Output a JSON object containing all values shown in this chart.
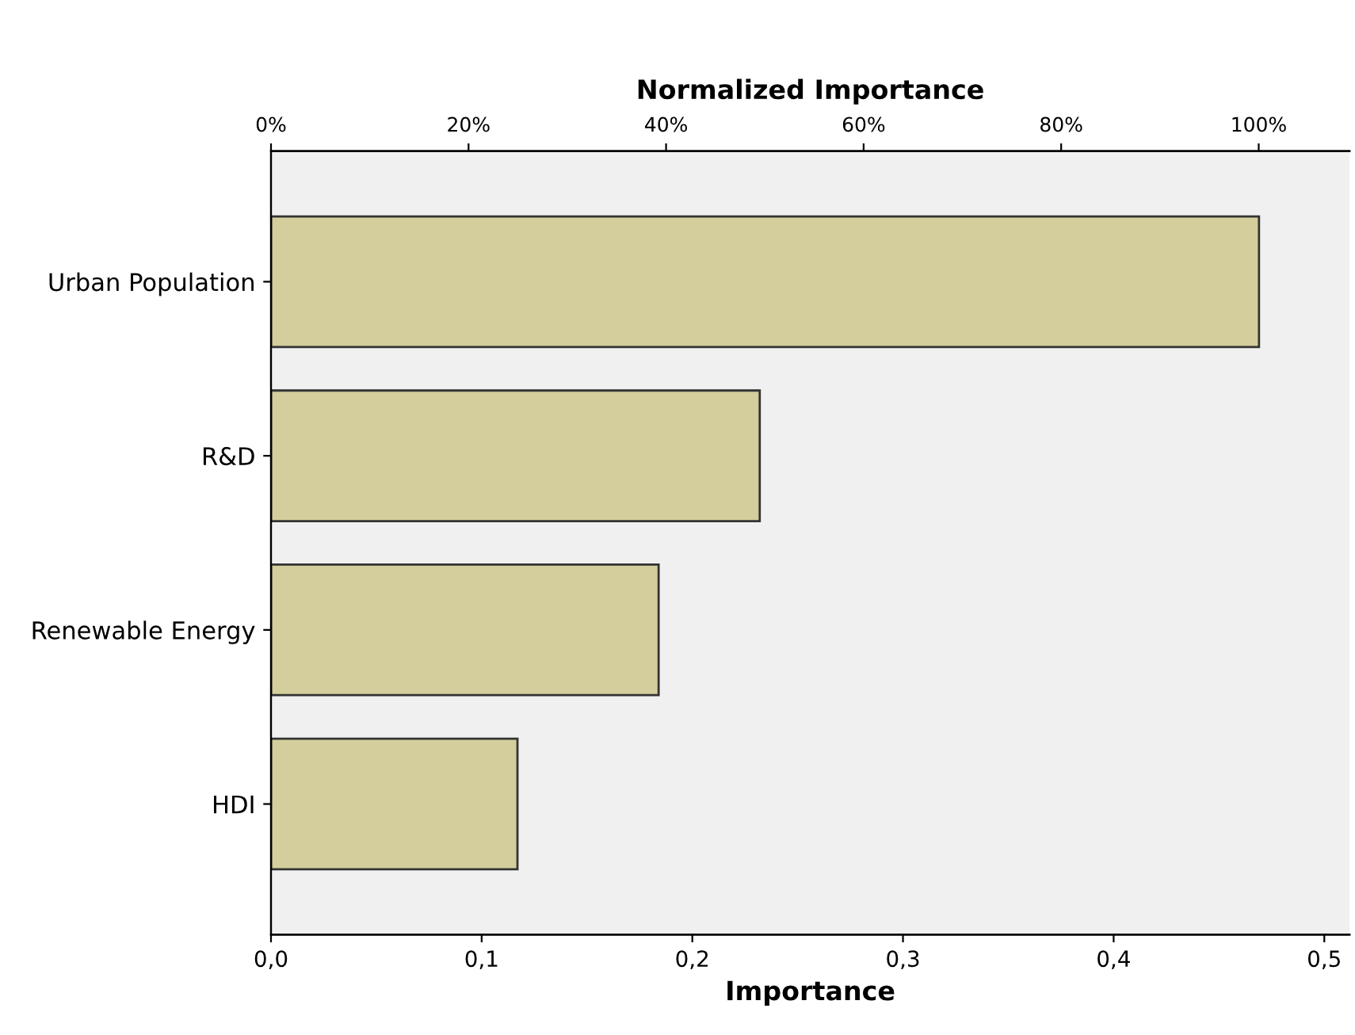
{
  "chart_data": {
    "type": "bar",
    "orientation": "horizontal",
    "xlabel": "Importance",
    "x2label": "Normalized Importance",
    "categories": [
      "Urban Population",
      "R&D",
      "Renewable Energy",
      "HDI"
    ],
    "series": [
      {
        "color": "#d3ce9b",
        "values": [
          0.469,
          0.232,
          0.184,
          0.117
        ]
      }
    ],
    "xlim": [
      0,
      0.512
    ],
    "xticks": [
      {
        "value": 0,
        "label": "0,0"
      },
      {
        "value": 0.1,
        "label": "0,1"
      },
      {
        "value": 0.2,
        "label": "0,2"
      },
      {
        "value": 0.3,
        "label": "0,3"
      },
      {
        "value": 0.4,
        "label": "0,4"
      },
      {
        "value": 0.5,
        "label": "0,5"
      }
    ],
    "x2lim": [
      0,
      109.2
    ],
    "x2ticks": [
      {
        "value": 0,
        "label": "0%"
      },
      {
        "value": 20,
        "label": "20%"
      },
      {
        "value": 40,
        "label": "40%"
      },
      {
        "value": 60,
        "label": "60%"
      },
      {
        "value": 80,
        "label": "80%"
      },
      {
        "value": 100,
        "label": "100%"
      }
    ],
    "grid": false,
    "legend": false
  }
}
